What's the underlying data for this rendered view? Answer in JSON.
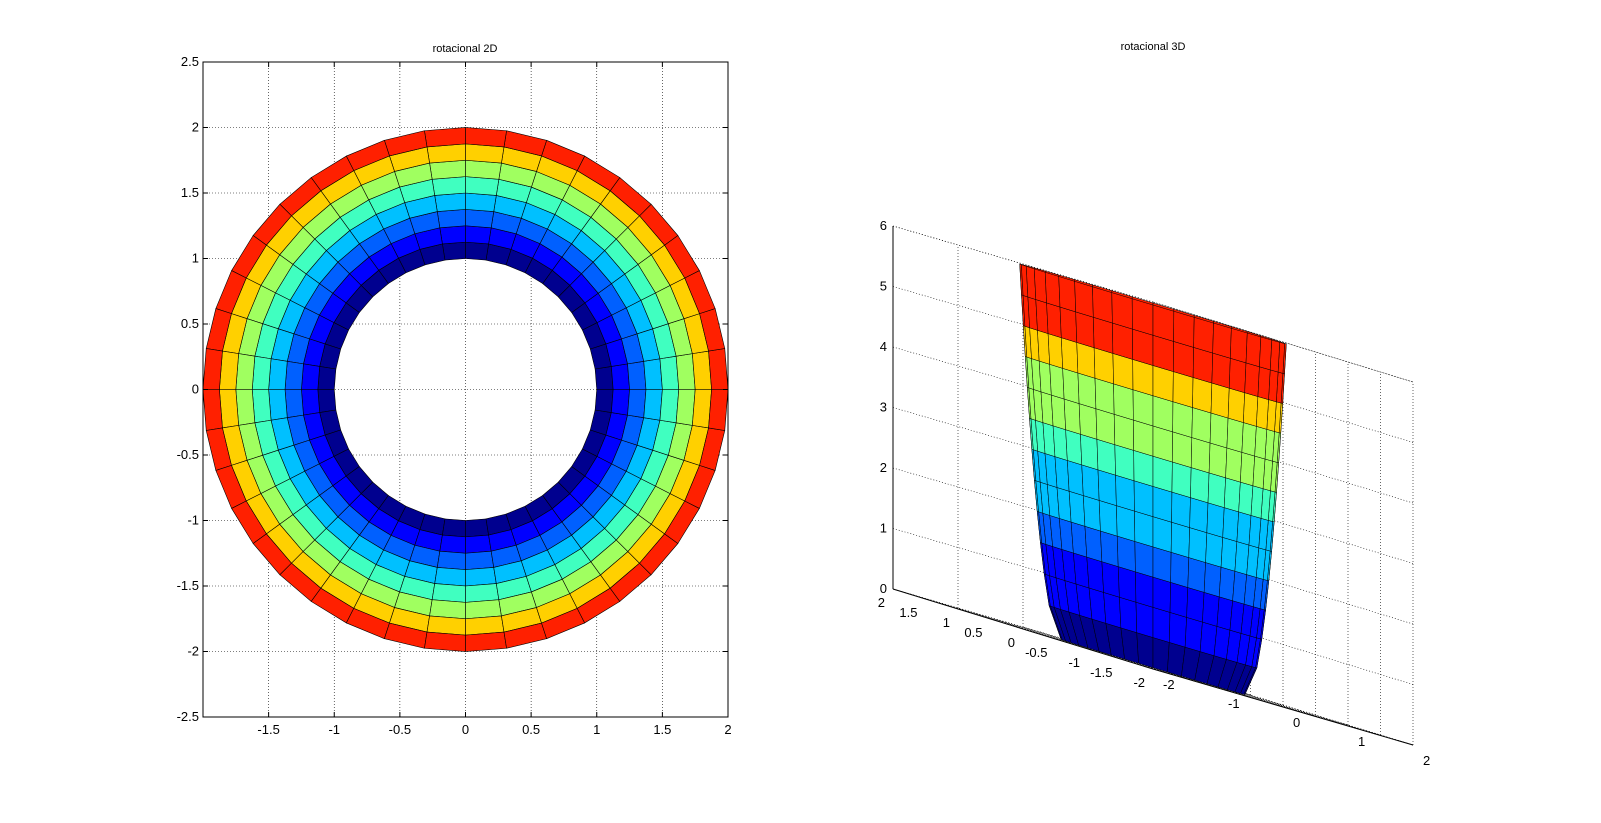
{
  "chart_data": [
    {
      "type": "surface-2d",
      "title": "rotacional 2D",
      "xlabel": "",
      "ylabel": "",
      "xlim": [
        -2,
        2
      ],
      "ylim": [
        -2.5,
        2.5
      ],
      "xticks": [
        "-1.5",
        "-1",
        "-0.5",
        "0",
        "0.5",
        "1",
        "1.5",
        "2"
      ],
      "yticks": [
        "2.5",
        "2",
        "1.5",
        "1",
        "0.5",
        "0",
        "-0.5",
        "-1",
        "-1.5",
        "-2",
        "-2.5"
      ],
      "grid": true,
      "surface": {
        "r_inner": 1,
        "r_outer": 2,
        "radial_bands": 8,
        "angular_segments": 40
      },
      "colormap": [
        "#00008f",
        "#0000ff",
        "#0060ff",
        "#00c0ff",
        "#40ffc0",
        "#a0ff60",
        "#ffd000",
        "#ff2000"
      ]
    },
    {
      "type": "surface-3d",
      "title": "rotacional 3D",
      "zlim": [
        0,
        6
      ],
      "zticks": [
        "6",
        "5",
        "4",
        "3",
        "2",
        "1",
        "0"
      ],
      "yticks": [
        "2",
        "1.5",
        "1",
        "0.5",
        "0",
        "-0.5",
        "-1",
        "-1.5",
        "-2"
      ],
      "xticks": [
        "2",
        "1",
        "0",
        "-1",
        "-2"
      ],
      "grid": true,
      "surface": {
        "z_levels": [
          0,
          0.5,
          1,
          1.5,
          2,
          2.5,
          3,
          3.5,
          4,
          4.5,
          5,
          5.5,
          6
        ],
        "angular_segments": 40
      },
      "colormap": [
        "#00008f",
        "#0000ff",
        "#0060ff",
        "#00c0ff",
        "#40ffc0",
        "#a0ff60",
        "#ffd000",
        "#ff2000"
      ]
    }
  ]
}
